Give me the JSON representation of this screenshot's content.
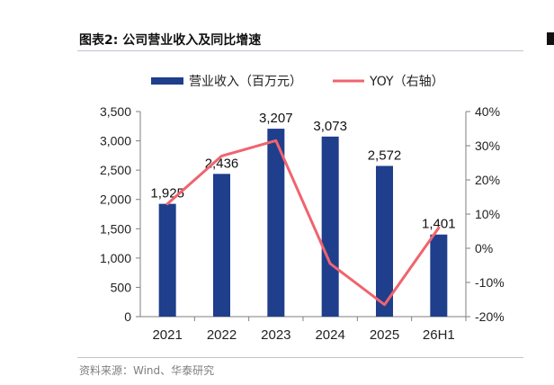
{
  "figure": {
    "title": "图表2:  公司营业收入及同比增速",
    "source": "资料来源：Wind、华泰研究"
  },
  "chart_data": {
    "type": "bar",
    "categories": [
      "2021",
      "2022",
      "2023",
      "2024",
      "2025",
      "26H1"
    ],
    "series": [
      {
        "name": "营业收入（百万元）",
        "kind": "bar",
        "axis": "left",
        "color": "#1f3e8c",
        "values": [
          1925,
          2436,
          3207,
          3073,
          2572,
          1401
        ],
        "labels": [
          "1,925",
          "2,436",
          "3,207",
          "3,073",
          "2,572",
          "1,401"
        ]
      },
      {
        "name": "YOY（右轴）",
        "kind": "line",
        "axis": "right",
        "color": "#f0646e",
        "values": [
          13,
          27,
          31.5,
          -4.5,
          -16.5,
          6
        ]
      }
    ],
    "y_left": {
      "range": [
        0,
        3500
      ],
      "ticks": [
        0,
        500,
        1000,
        1500,
        2000,
        2500,
        3000,
        3500
      ],
      "tick_labels": [
        "0",
        "500",
        "1,000",
        "1,500",
        "2,000",
        "2,500",
        "3,000",
        "3,500"
      ]
    },
    "y_right": {
      "range": [
        -20,
        40
      ],
      "ticks": [
        -20,
        -10,
        0,
        10,
        20,
        30,
        40
      ],
      "tick_labels": [
        "-20%",
        "-10%",
        "0%",
        "10%",
        "20%",
        "30%",
        "40%"
      ]
    },
    "grid": false,
    "legend_position": "top-center"
  }
}
